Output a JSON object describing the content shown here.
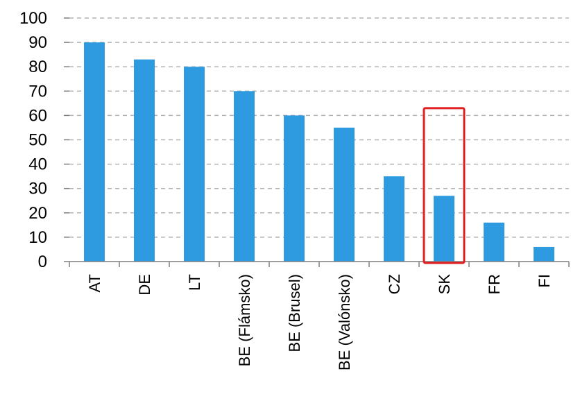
{
  "chart_data": {
    "type": "bar",
    "categories": [
      "AT",
      "DE",
      "LT",
      "BE (Flámsko)",
      "BE (Brusel)",
      "BE (Valónsko)",
      "CZ",
      "SK",
      "FR",
      "FI"
    ],
    "values": [
      90,
      83,
      80,
      70,
      60,
      55,
      35,
      27,
      16,
      6
    ],
    "title": "",
    "xlabel": "",
    "ylabel": "",
    "ylim": [
      0,
      100
    ],
    "yticks": [
      0,
      10,
      20,
      30,
      40,
      50,
      60,
      70,
      80,
      90,
      100
    ],
    "grid": true,
    "bar_color": "#2e9be0",
    "highlight": {
      "category": "SK",
      "color": "#e02020"
    }
  }
}
